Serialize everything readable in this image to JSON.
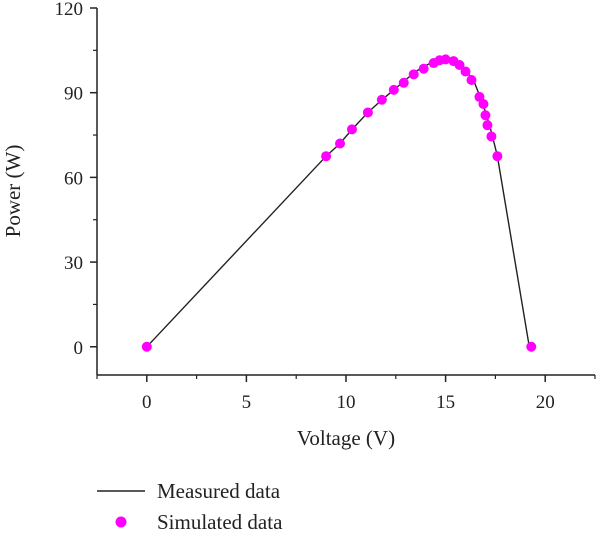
{
  "chart_data": {
    "type": "line",
    "title": "",
    "xlabel": "Voltage (V)",
    "ylabel": "Power (W)",
    "xlim": [
      -2.5,
      22.5
    ],
    "ylim": [
      -10,
      120
    ],
    "xticks": [
      0,
      5,
      10,
      15,
      20
    ],
    "yticks": [
      0,
      30,
      60,
      90,
      120
    ],
    "grid": false,
    "legend_position": "bottom-left",
    "series": [
      {
        "name": "Measured data",
        "kind": "line",
        "color": "#222222",
        "x": [
          0,
          9.0,
          9.7,
          10.3,
          11.1,
          11.8,
          12.4,
          12.9,
          13.5,
          14.1,
          14.6,
          15.0,
          15.4,
          15.8,
          16.1,
          16.4,
          16.7,
          16.9,
          17.1,
          17.3,
          17.6,
          19.2
        ],
        "y": [
          0,
          67.5,
          72,
          77,
          83,
          87.5,
          91,
          94,
          97.5,
          100,
          101.3,
          101.8,
          101.2,
          99.5,
          97,
          94.5,
          89,
          85.5,
          81,
          76,
          67.5,
          0
        ]
      },
      {
        "name": "Simulated data",
        "kind": "scatter",
        "color": "#ff00ff",
        "x": [
          0,
          9.0,
          9.7,
          10.3,
          11.1,
          11.8,
          12.4,
          12.9,
          13.4,
          13.9,
          14.4,
          14.7,
          15.0,
          15.4,
          15.7,
          16.0,
          16.3,
          16.7,
          16.9,
          17.0,
          17.1,
          17.3,
          17.6,
          19.3
        ],
        "y": [
          0,
          67.5,
          72,
          77,
          83,
          87.5,
          91,
          93.5,
          96.5,
          98.5,
          100.5,
          101.5,
          101.8,
          101.2,
          99.8,
          97.5,
          94.5,
          88.5,
          86,
          82,
          78.5,
          74.5,
          67.5,
          0
        ]
      }
    ]
  }
}
